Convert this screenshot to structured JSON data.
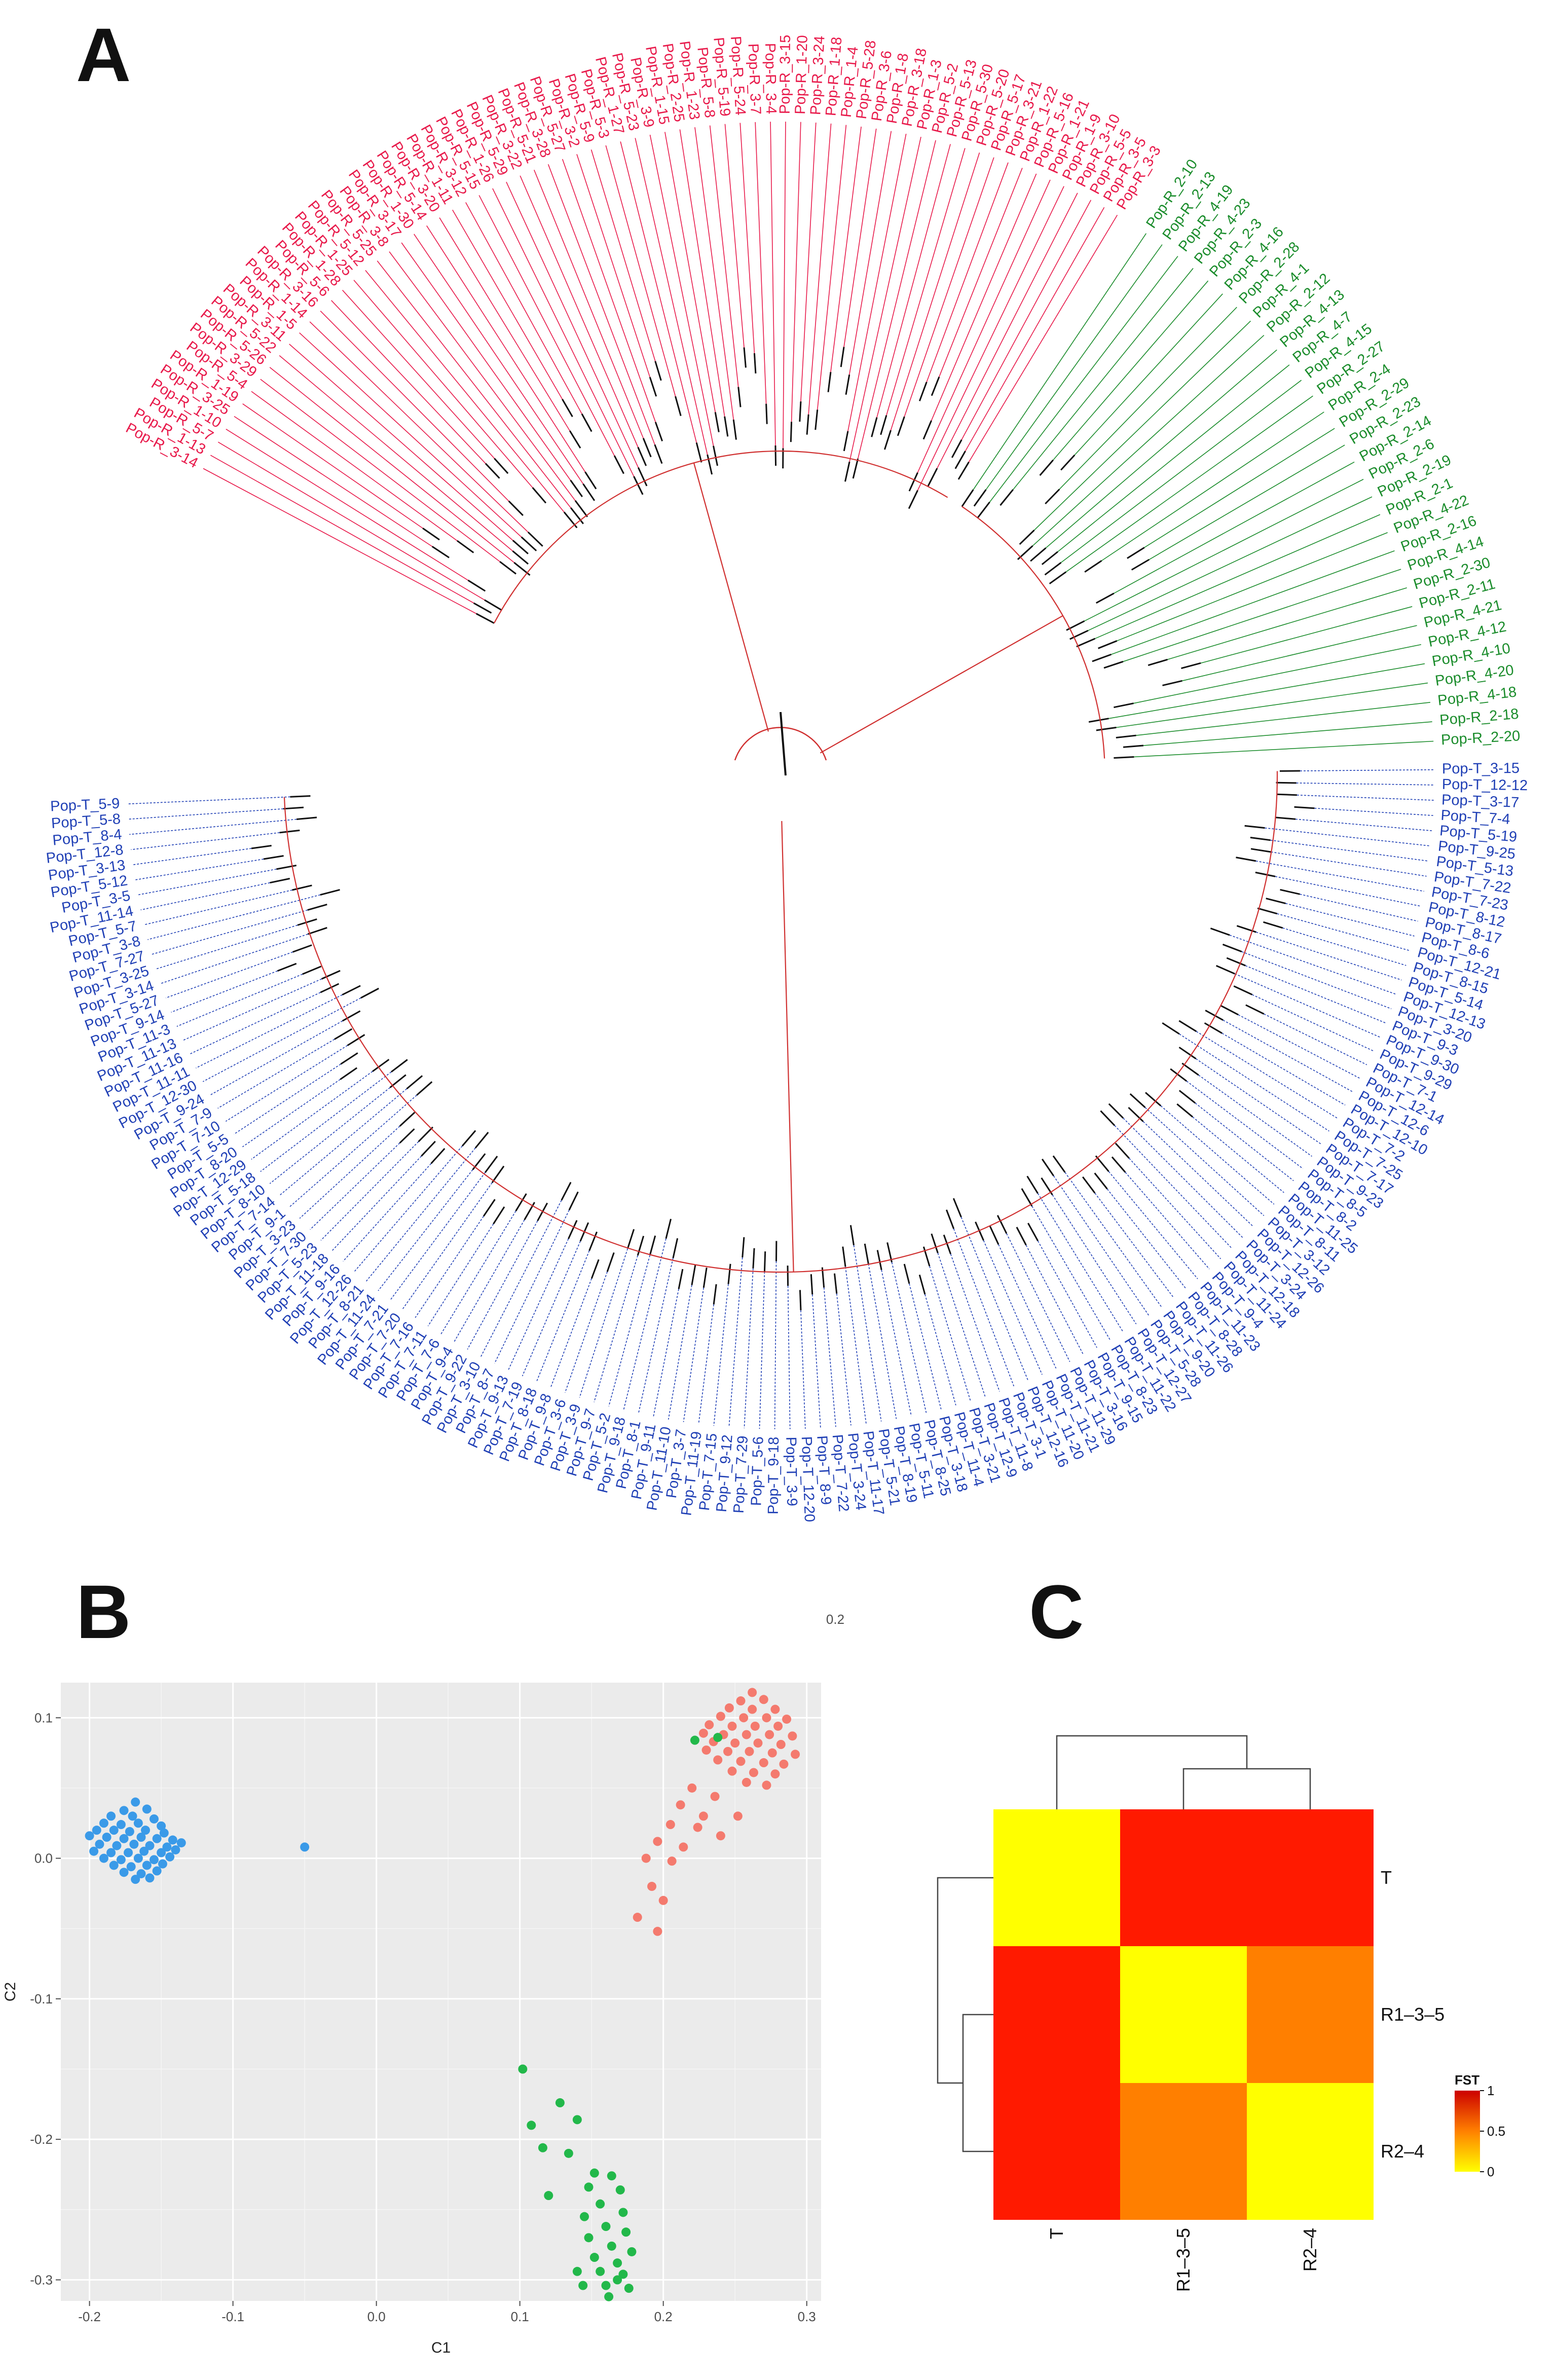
{
  "panels": {
    "a": "A",
    "b": "B",
    "c": "C"
  },
  "colors": {
    "pop_r_red": "#e8194a",
    "pop_r_green": "#1a8c2b",
    "pop_t": "#1f3fb5",
    "pca_r_red": "#f47a6e",
    "pca_r_green": "#22b84a",
    "pca_t": "#3a9ae8",
    "hm_low": "#ffff00",
    "hm_mid": "#ff7f00",
    "hm_high": "#ff1a00"
  },
  "chart_data": [
    {
      "type": "tree",
      "panel": "A",
      "layout": "circular",
      "scale_bar_label": "0.2",
      "scale_bar_value": 0.2,
      "clades": [
        {
          "name": "Pop-R red",
          "color_key": "pop_r_red",
          "tips": [
            "Pop-R_3-14",
            "Pop-R_1-13",
            "Pop-R_5-7",
            "Pop-R_1-10",
            "Pop-R_3-25",
            "Pop-R_1-19",
            "Pop-R_5-4",
            "Pop-R_3-29",
            "Pop-R_5-26",
            "Pop-R_5-22",
            "Pop-R_3-11",
            "Pop-R_1-5",
            "Pop-R_1-14",
            "Pop-R_3-16",
            "Pop-R_5-6",
            "Pop-R_1-28",
            "Pop-R_1-25",
            "Pop-R_5-12",
            "Pop-R_5-25",
            "Pop-R_3-8",
            "Pop-R_3-17",
            "Pop-R_1-30",
            "Pop-R_5-14",
            "Pop-R_3-20",
            "Pop-R_1-11",
            "Pop-R_3-12",
            "Pop-R_5-15",
            "Pop-R_1-26",
            "Pop-R_5-29",
            "Pop-R_3-22",
            "Pop-R_5-21",
            "Pop-R_3-28",
            "Pop-R_5-27",
            "Pop-R_3-2",
            "Pop-R_5-9",
            "Pop-R_5-3",
            "Pop-R_1-27",
            "Pop-R_5-23",
            "Pop-R_3-9",
            "Pop-R_1-15",
            "Pop-R_2-25",
            "Pop-R_1-23",
            "Pop-R_5-8",
            "Pop-R_5-19",
            "Pop-R_5-24",
            "Pop-R_3-7",
            "Pop-R_3-4",
            "Pop-R_3-15",
            "Pop-R_1-20",
            "Pop-R_3-24",
            "Pop-R_1-18",
            "Pop-R_1-4",
            "Pop-R_5-28",
            "Pop-R_3-6",
            "Pop-R_1-8",
            "Pop-R_3-18",
            "Pop-R_1-3",
            "Pop-R_5-2",
            "Pop-R_5-13",
            "Pop-R_5-30",
            "Pop-R_5-20",
            "Pop-R_5-17",
            "Pop-R_3-21",
            "Pop-R_1-22",
            "Pop-R_5-16",
            "Pop-R_1-21",
            "Pop-R_1-9",
            "Pop-R_3-10",
            "Pop-R_5-5",
            "Pop-R_3-5",
            "Pop-R_3-3"
          ]
        },
        {
          "name": "Pop-R green",
          "color_key": "pop_r_green",
          "tips": [
            "Pop-R_2-10",
            "Pop-R_2-13",
            "Pop-R_4-19",
            "Pop-R_4-23",
            "Pop-R_2-3",
            "Pop-R_4-16",
            "Pop-R_2-28",
            "Pop-R_4-1",
            "Pop-R_2-12",
            "Pop-R_4-13",
            "Pop-R_4-7",
            "Pop-R_4-15",
            "Pop-R_2-27",
            "Pop-R_2-4",
            "Pop-R_2-29",
            "Pop-R_2-23",
            "Pop-R_2-14",
            "Pop-R_2-6",
            "Pop-R_2-19",
            "Pop-R_2-1",
            "Pop-R_4-22",
            "Pop-R_2-16",
            "Pop-R_4-14",
            "Pop-R_2-30",
            "Pop-R_2-11",
            "Pop-R_4-21",
            "Pop-R_4-12",
            "Pop-R_4-10",
            "Pop-R_4-20",
            "Pop-R_4-18",
            "Pop-R_2-18",
            "Pop-R_2-20"
          ]
        },
        {
          "name": "Pop-T",
          "color_key": "pop_t",
          "tips": [
            "Pop-T_3-15",
            "Pop-T_12-12",
            "Pop-T_3-17",
            "Pop-T_7-4",
            "Pop-T_5-19",
            "Pop-T_9-25",
            "Pop-T_5-13",
            "Pop-T_7-22",
            "Pop-T_7-23",
            "Pop-T_8-12",
            "Pop-T_8-17",
            "Pop-T_8-6",
            "Pop-T_12-21",
            "Pop-T_8-15",
            "Pop-T_5-14",
            "Pop-T_12-13",
            "Pop-T_3-20",
            "Pop-T_9-3",
            "Pop-T_9-30",
            "Pop-T_9-29",
            "Pop-T_7-1",
            "Pop-T_12-14",
            "Pop-T_12-6",
            "Pop-T_12-10",
            "Pop-T_7-2",
            "Pop-T_7-25",
            "Pop-T_7-17",
            "Pop-T_9-23",
            "Pop-T_8-5",
            "Pop-T_8-2",
            "Pop-T_11-25",
            "Pop-T_8-11",
            "Pop-T_3-12",
            "Pop-T_12-26",
            "Pop-T_3-24",
            "Pop-T_12-18",
            "Pop-T_11-24",
            "Pop-T_9-4",
            "Pop-T_11-23",
            "Pop-T_8-28",
            "Pop-T_11-26",
            "Pop-T_9-20",
            "Pop-T_5-28",
            "Pop-T_12-27",
            "Pop-T_11-22",
            "Pop-T_8-23",
            "Pop-T_9-15",
            "Pop-T_3-16",
            "Pop-T_11-29",
            "Pop-T_11-21",
            "Pop-T_11-20",
            "Pop-T_12-16",
            "Pop-T_3-1",
            "Pop-T_11-8",
            "Pop-T_12-9",
            "Pop-T_3-21",
            "Pop-T_11-4",
            "Pop-T_3-18",
            "Pop-T_8-25",
            "Pop-T_5-11",
            "Pop-T_8-19",
            "Pop-T_5-21",
            "Pop-T_11-17",
            "Pop-T_3-24",
            "Pop-T_7-22",
            "Pop-T_8-9",
            "Pop-T_12-20",
            "Pop-T_3-9",
            "Pop-T_9-18",
            "Pop-T_5-6",
            "Pop-T_7-29",
            "Pop-T_9-12",
            "Pop-T_7-15",
            "Pop-T_11-19",
            "Pop-T_3-7",
            "Pop-T_11-10",
            "Pop-T_9-11",
            "Pop-T_8-1",
            "Pop-T_9-18",
            "Pop-T_5-2",
            "Pop-T_9-7",
            "Pop-T_3-9",
            "Pop-T_3-6",
            "Pop-T_9-8",
            "Pop-T_8-18",
            "Pop-T_7-19",
            "Pop-T_9-13",
            "Pop-T_8-7",
            "Pop-T_3-10",
            "Pop-T_9-22",
            "Pop-T_9-4",
            "Pop-T_7-6",
            "Pop-T_7-11",
            "Pop-T_7-16",
            "Pop-T_7-20",
            "Pop-T_7-21",
            "Pop-T_11-24",
            "Pop-T_8-21",
            "Pop-T_12-26",
            "Pop-T_9-16",
            "Pop-T_11-18",
            "Pop-T_5-23",
            "Pop-T_7-30",
            "Pop-T_3-23",
            "Pop-T_9-1",
            "Pop-T_7-14",
            "Pop-T_8-10",
            "Pop-T_5-18",
            "Pop-T_12-29",
            "Pop-T_8-20",
            "Pop-T_5-5",
            "Pop-T_7-10",
            "Pop-T_7-9",
            "Pop-T_9-24",
            "Pop-T_12-30",
            "Pop-T_11-11",
            "Pop-T_11-16",
            "Pop-T_11-13",
            "Pop-T_11-3",
            "Pop-T_9-14",
            "Pop-T_5-27",
            "Pop-T_3-14",
            "Pop-T_3-25",
            "Pop-T_7-27",
            "Pop-T_3-8",
            "Pop-T_5-7",
            "Pop-T_11-14",
            "Pop-T_3-5",
            "Pop-T_5-12",
            "Pop-T_3-13",
            "Pop-T_12-8",
            "Pop-T_8-4",
            "Pop-T_5-8",
            "Pop-T_5-9"
          ]
        }
      ]
    },
    {
      "type": "scatter",
      "panel": "B",
      "title": "",
      "xlabel": "C1",
      "ylabel": "C2",
      "xlim": [
        -0.22,
        0.31
      ],
      "ylim": [
        -0.315,
        0.125
      ],
      "xticks": [
        -0.2,
        -0.1,
        0.0,
        0.1,
        0.2,
        0.3
      ],
      "xtick_labels": [
        "-0.2",
        "-0.1",
        "0.0",
        "0.1",
        "0.2",
        "0.3"
      ],
      "yticks": [
        0.1,
        0.0,
        -0.1,
        -0.2,
        -0.3
      ],
      "ytick_labels": [
        "0.1",
        "0.0",
        "-0.1",
        "-0.2",
        "-0.3"
      ],
      "grid": true,
      "series": [
        {
          "name": "T",
          "color_key": "pca_t",
          "points": [
            [
              -0.168,
              0.04
            ],
            [
              -0.176,
              0.034
            ],
            [
              -0.16,
              0.035
            ],
            [
              -0.185,
              0.03
            ],
            [
              -0.17,
              0.03
            ],
            [
              -0.155,
              0.028
            ],
            [
              -0.19,
              0.025
            ],
            [
              -0.178,
              0.024
            ],
            [
              -0.166,
              0.025
            ],
            [
              -0.15,
              0.023
            ],
            [
              -0.195,
              0.02
            ],
            [
              -0.183,
              0.02
            ],
            [
              -0.172,
              0.019
            ],
            [
              -0.161,
              0.02
            ],
            [
              -0.148,
              0.018
            ],
            [
              -0.2,
              0.016
            ],
            [
              -0.188,
              0.015
            ],
            [
              -0.176,
              0.014
            ],
            [
              -0.164,
              0.015
            ],
            [
              -0.153,
              0.014
            ],
            [
              -0.142,
              0.013
            ],
            [
              -0.193,
              0.01
            ],
            [
              -0.181,
              0.009
            ],
            [
              -0.169,
              0.01
            ],
            [
              -0.158,
              0.009
            ],
            [
              -0.146,
              0.008
            ],
            [
              -0.136,
              0.011
            ],
            [
              -0.197,
              0.005
            ],
            [
              -0.185,
              0.004
            ],
            [
              -0.173,
              0.004
            ],
            [
              -0.162,
              0.005
            ],
            [
              -0.15,
              0.004
            ],
            [
              -0.14,
              0.006
            ],
            [
              -0.19,
              0.0
            ],
            [
              -0.178,
              -0.001
            ],
            [
              -0.166,
              0.0
            ],
            [
              -0.155,
              -0.001
            ],
            [
              -0.144,
              0.001
            ],
            [
              -0.183,
              -0.005
            ],
            [
              -0.171,
              -0.006
            ],
            [
              -0.16,
              -0.005
            ],
            [
              -0.149,
              -0.004
            ],
            [
              -0.176,
              -0.01
            ],
            [
              -0.164,
              -0.011
            ],
            [
              -0.153,
              -0.009
            ],
            [
              -0.168,
              -0.015
            ],
            [
              -0.158,
              -0.014
            ],
            [
              -0.05,
              0.008
            ]
          ]
        },
        {
          "name": "R1-3-5",
          "color_key": "pca_r_red",
          "points": [
            [
              0.262,
              0.118
            ],
            [
              0.254,
              0.112
            ],
            [
              0.27,
              0.113
            ],
            [
              0.246,
              0.107
            ],
            [
              0.262,
              0.106
            ],
            [
              0.278,
              0.106
            ],
            [
              0.24,
              0.101
            ],
            [
              0.256,
              0.1
            ],
            [
              0.272,
              0.1
            ],
            [
              0.286,
              0.099
            ],
            [
              0.232,
              0.095
            ],
            [
              0.248,
              0.094
            ],
            [
              0.264,
              0.094
            ],
            [
              0.28,
              0.094
            ],
            [
              0.228,
              0.089
            ],
            [
              0.242,
              0.088
            ],
            [
              0.258,
              0.088
            ],
            [
              0.274,
              0.088
            ],
            [
              0.29,
              0.087
            ],
            [
              0.235,
              0.083
            ],
            [
              0.25,
              0.082
            ],
            [
              0.266,
              0.082
            ],
            [
              0.282,
              0.081
            ],
            [
              0.23,
              0.077
            ],
            [
              0.245,
              0.076
            ],
            [
              0.26,
              0.076
            ],
            [
              0.276,
              0.075
            ],
            [
              0.292,
              0.074
            ],
            [
              0.238,
              0.07
            ],
            [
              0.254,
              0.069
            ],
            [
              0.27,
              0.068
            ],
            [
              0.284,
              0.067
            ],
            [
              0.248,
              0.062
            ],
            [
              0.263,
              0.061
            ],
            [
              0.278,
              0.06
            ],
            [
              0.258,
              0.054
            ],
            [
              0.272,
              0.052
            ],
            [
              0.22,
              0.05
            ],
            [
              0.236,
              0.044
            ],
            [
              0.212,
              0.038
            ],
            [
              0.228,
              0.03
            ],
            [
              0.252,
              0.03
            ],
            [
              0.205,
              0.024
            ],
            [
              0.224,
              0.022
            ],
            [
              0.24,
              0.016
            ],
            [
              0.196,
              0.012
            ],
            [
              0.214,
              0.008
            ],
            [
              0.188,
              0.0
            ],
            [
              0.206,
              -0.002
            ],
            [
              0.192,
              -0.02
            ],
            [
              0.2,
              -0.03
            ],
            [
              0.182,
              -0.042
            ],
            [
              0.196,
              -0.052
            ]
          ]
        },
        {
          "name": "R2-4",
          "color_key": "pca_r_green",
          "points": [
            [
              0.222,
              0.084
            ],
            [
              0.238,
              0.086
            ],
            [
              0.102,
              -0.15
            ],
            [
              0.128,
              -0.174
            ],
            [
              0.108,
              -0.19
            ],
            [
              0.14,
              -0.186
            ],
            [
              0.116,
              -0.206
            ],
            [
              0.134,
              -0.21
            ],
            [
              0.152,
              -0.224
            ],
            [
              0.164,
              -0.226
            ],
            [
              0.148,
              -0.234
            ],
            [
              0.17,
              -0.236
            ],
            [
              0.12,
              -0.24
            ],
            [
              0.156,
              -0.246
            ],
            [
              0.172,
              -0.252
            ],
            [
              0.145,
              -0.255
            ],
            [
              0.16,
              -0.262
            ],
            [
              0.174,
              -0.266
            ],
            [
              0.148,
              -0.27
            ],
            [
              0.164,
              -0.276
            ],
            [
              0.178,
              -0.28
            ],
            [
              0.152,
              -0.284
            ],
            [
              0.168,
              -0.288
            ],
            [
              0.14,
              -0.294
            ],
            [
              0.156,
              -0.294
            ],
            [
              0.172,
              -0.296
            ],
            [
              0.144,
              -0.304
            ],
            [
              0.16,
              -0.304
            ],
            [
              0.176,
              -0.306
            ],
            [
              0.162,
              -0.312
            ],
            [
              0.168,
              -0.3
            ]
          ]
        }
      ]
    },
    {
      "type": "heatmap",
      "panel": "C",
      "rows": [
        "T",
        "R1–3–5",
        "R2–4"
      ],
      "cols": [
        "T",
        "R1–3–5",
        "R2–4"
      ],
      "values": [
        [
          0,
          1,
          1
        ],
        [
          1,
          0,
          0.6
        ],
        [
          1,
          0.6,
          0
        ]
      ],
      "legend_title": "FST",
      "legend_ticks": [
        "1",
        "0.5",
        "0"
      ],
      "legend_tick_values": [
        1,
        0.5,
        0
      ],
      "legend_range": [
        0,
        1
      ]
    }
  ]
}
